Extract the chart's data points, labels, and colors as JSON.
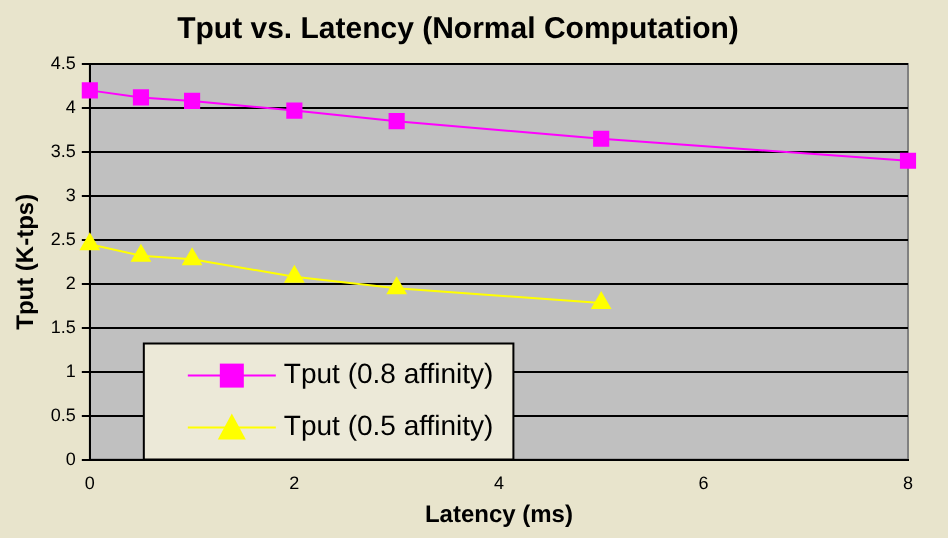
{
  "chart_data": {
    "type": "line",
    "title": "Tput vs. Latency (Normal Computation)",
    "xlabel": "Latency (ms)",
    "ylabel": "Tput (K-tps)",
    "series": [
      {
        "name": "Tput (0.8 affinity)",
        "color": "#ff00ff",
        "marker": "square",
        "x": [
          0,
          0.5,
          1,
          2,
          3,
          5,
          8
        ],
        "values": [
          4.2,
          4.12,
          4.08,
          3.97,
          3.85,
          3.65,
          3.4
        ]
      },
      {
        "name": "Tput (0.5 affinity)",
        "color": "#ffff00",
        "marker": "triangle",
        "x": [
          0,
          0.5,
          1,
          2,
          3,
          5
        ],
        "values": [
          2.45,
          2.32,
          2.28,
          2.08,
          1.95,
          1.78
        ]
      }
    ],
    "xlim": [
      0,
      8
    ],
    "xticks": [
      0,
      2,
      4,
      6,
      8
    ],
    "ylim": [
      0,
      4.5
    ],
    "yticks": [
      0,
      0.5,
      1,
      1.5,
      2,
      2.5,
      3,
      3.5,
      4,
      4.5
    ],
    "grid": "y",
    "legend": "bottom left"
  }
}
